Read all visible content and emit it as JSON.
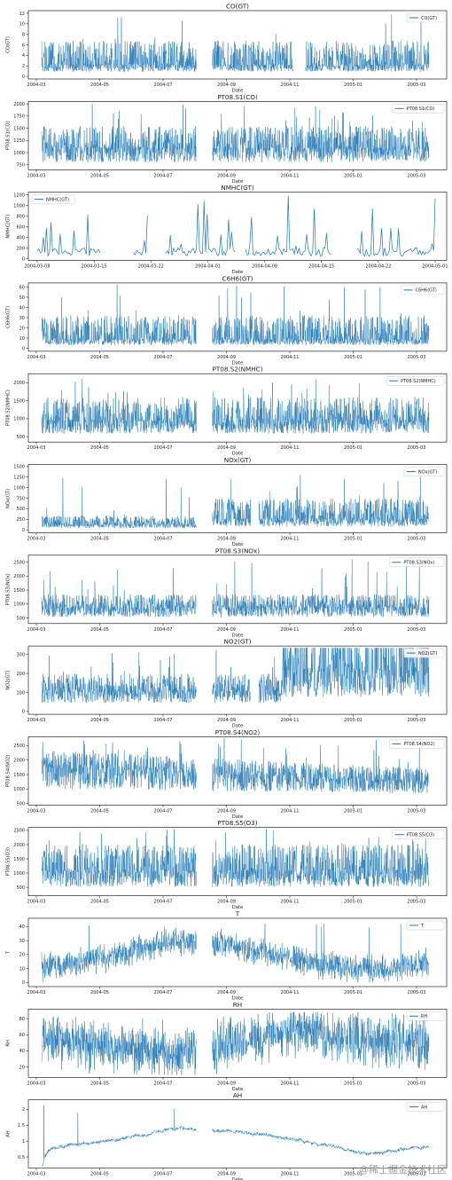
{
  "colors": {
    "line": "#1f77b4",
    "axis": "#000000",
    "legend_border": "#cccccc"
  },
  "watermark": "@稀土掘金技术社区",
  "chart_data": [
    {
      "type": "line",
      "title": "CO(GT)",
      "xlabel": "Date",
      "ylabel": "CO(GT)",
      "legend": "top-right",
      "series": [
        {
          "name": "CO(GT)"
        }
      ],
      "x_ticks": [
        "2004-03",
        "2004-05",
        "2004-07",
        "2004-09",
        "2004-11",
        "2005-01",
        "2005-03"
      ],
      "y_ticks": [
        0,
        2,
        4,
        6,
        8,
        10,
        12
      ],
      "ylim": [
        -0.5,
        12.5
      ],
      "signal": {
        "lo": 0.4,
        "mid": 2.0,
        "hi": 6.0,
        "peak": 11.9,
        "noise": 1.2,
        "gaps": [
          [
            0.4,
            0.44
          ],
          [
            0.65,
            0.68
          ]
        ]
      }
    },
    {
      "type": "line",
      "title": "PT08.S1(CO)",
      "xlabel": "Date",
      "ylabel": "PT08.S1(CO)",
      "legend": "top-right",
      "series": [
        {
          "name": "PT08.S1(CO)"
        }
      ],
      "x_ticks": [
        "2004-03",
        "2004-05",
        "2004-07",
        "2004-09",
        "2004-11",
        "2005-01",
        "2005-03"
      ],
      "y_ticks": [
        750,
        1000,
        1250,
        1500,
        1750,
        2000
      ],
      "ylim": [
        650,
        2050
      ],
      "signal": {
        "lo": 700,
        "mid": 1050,
        "hi": 1600,
        "peak": 2000,
        "noise": 0.9,
        "gaps": [
          [
            0.4,
            0.44
          ]
        ]
      }
    },
    {
      "type": "line",
      "title": "NMHC(GT)",
      "xlabel": "Date",
      "ylabel": "NMHC(GT)",
      "legend": "top-left",
      "series": [
        {
          "name": "NMHC(GT)"
        }
      ],
      "x_ticks": [
        "2004-03-08",
        "2004-03-15",
        "2004-03-22",
        "2004-04-01",
        "2004-04-08",
        "2004-04-15",
        "2004-04-22",
        "2004-05-01"
      ],
      "y_ticks": [
        0,
        200,
        400,
        600,
        800,
        1000,
        1200
      ],
      "ylim": [
        -30,
        1250
      ],
      "signal": {
        "lo": 50,
        "mid": 150,
        "hi": 600,
        "peak": 1190,
        "noise": 0.4,
        "sparse": true,
        "gaps": [
          [
            0.16,
            0.24
          ],
          [
            0.28,
            0.32
          ],
          [
            0.5,
            0.52
          ],
          [
            0.74,
            0.8
          ]
        ]
      }
    },
    {
      "type": "line",
      "title": "C6H6(GT)",
      "xlabel": "Date",
      "ylabel": "C6H6(GT)",
      "legend": "top-right",
      "series": [
        {
          "name": "C6H6(GT)"
        }
      ],
      "x_ticks": [
        "2004-03",
        "2004-05",
        "2004-07",
        "2004-09",
        "2004-11",
        "2005-01",
        "2005-03"
      ],
      "y_ticks": [
        0,
        10,
        20,
        30,
        40,
        50,
        60
      ],
      "ylim": [
        -3,
        64
      ],
      "signal": {
        "lo": 1,
        "mid": 8,
        "hi": 30,
        "peak": 63,
        "noise": 1.1,
        "gaps": [
          [
            0.4,
            0.44
          ]
        ]
      }
    },
    {
      "type": "line",
      "title": "PT08.S2(NMHC)",
      "xlabel": "Date",
      "ylabel": "PT08.S2(NMHC)",
      "legend": "top-right",
      "series": [
        {
          "name": "PT08.S2(NMHC)"
        }
      ],
      "x_ticks": [
        "2004-03",
        "2004-05",
        "2004-07",
        "2004-09",
        "2004-11",
        "2005-01",
        "2005-03"
      ],
      "y_ticks": [
        500,
        1000,
        1500,
        2000
      ],
      "ylim": [
        350,
        2250
      ],
      "signal": {
        "lo": 450,
        "mid": 900,
        "hi": 1600,
        "peak": 2200,
        "noise": 1.0,
        "gaps": [
          [
            0.4,
            0.44
          ]
        ]
      }
    },
    {
      "type": "line",
      "title": "NOx(GT)",
      "xlabel": "Date",
      "ylabel": "NOx(GT)",
      "legend": "top-right",
      "series": [
        {
          "name": "NOx(GT)"
        }
      ],
      "x_ticks": [
        "2004-03",
        "2004-05",
        "2004-07",
        "2004-09",
        "2004-11",
        "2005-01",
        "2005-03"
      ],
      "y_ticks": [
        0,
        250,
        500,
        750,
        1000,
        1250,
        1500
      ],
      "ylim": [
        -70,
        1550
      ],
      "signal": {
        "lo": 10,
        "mid": 120,
        "hi": 300,
        "peak": 1480,
        "noise": 1.2,
        "rise_at": 0.42,
        "gaps": [
          [
            0.4,
            0.44
          ],
          [
            0.54,
            0.56
          ]
        ]
      }
    },
    {
      "type": "line",
      "title": "PT08.S3(NOx)",
      "xlabel": "Date",
      "ylabel": "PT08.S3(NOx)",
      "legend": "top-right",
      "series": [
        {
          "name": "PT08.S3(NOx)"
        }
      ],
      "x_ticks": [
        "2004-03",
        "2004-05",
        "2004-07",
        "2004-09",
        "2004-11",
        "2005-01",
        "2005-03"
      ],
      "y_ticks": [
        500,
        1000,
        1500,
        2000,
        2500
      ],
      "ylim": [
        300,
        2750
      ],
      "signal": {
        "lo": 400,
        "mid": 850,
        "hi": 1400,
        "peak": 2650,
        "noise": 0.9,
        "gaps": [
          [
            0.4,
            0.44
          ]
        ]
      }
    },
    {
      "type": "line",
      "title": "NO2(GT)",
      "xlabel": "Date",
      "ylabel": "NO2(GT)",
      "legend": "top-right",
      "series": [
        {
          "name": "NO2(GT)"
        }
      ],
      "x_ticks": [
        "2004-03",
        "2004-05",
        "2004-07",
        "2004-09",
        "2004-11",
        "2005-01",
        "2005-03"
      ],
      "y_ticks": [
        0,
        100,
        200,
        300
      ],
      "ylim": [
        -15,
        345
      ],
      "signal": {
        "lo": 20,
        "mid": 100,
        "hi": 200,
        "peak": 335,
        "noise": 1.0,
        "rise_at": 0.62,
        "gaps": [
          [
            0.4,
            0.44
          ],
          [
            0.54,
            0.56
          ]
        ]
      }
    },
    {
      "type": "line",
      "title": "PT08.S4(NO2)",
      "xlabel": "Date",
      "ylabel": "PT08.S4(NO2)",
      "legend": "top-right",
      "series": [
        {
          "name": "PT08.S4(NO2)"
        }
      ],
      "x_ticks": [
        "2004-03",
        "2004-05",
        "2004-07",
        "2004-09",
        "2004-11",
        "2005-01",
        "2005-03"
      ],
      "y_ticks": [
        500,
        1000,
        1500,
        2000,
        2500
      ],
      "ylim": [
        450,
        2800
      ],
      "signal": {
        "lo": 700,
        "mid": 1500,
        "hi": 2200,
        "peak": 2750,
        "noise": 0.9,
        "decline": true,
        "gaps": [
          [
            0.4,
            0.44
          ]
        ]
      }
    },
    {
      "type": "line",
      "title": "PT08.S5(O3)",
      "xlabel": "Date",
      "ylabel": "PT08.S5(O3)",
      "legend": "top-right",
      "series": [
        {
          "name": "PT08.S5(O3)"
        }
      ],
      "x_ticks": [
        "2004-03",
        "2004-05",
        "2004-07",
        "2004-09",
        "2004-11",
        "2005-01",
        "2005-03"
      ],
      "y_ticks": [
        500,
        1000,
        1500,
        2000,
        2500
      ],
      "ylim": [
        200,
        2600
      ],
      "signal": {
        "lo": 300,
        "mid": 1000,
        "hi": 2000,
        "peak": 2550,
        "noise": 1.0,
        "gaps": [
          [
            0.4,
            0.44
          ]
        ]
      }
    },
    {
      "type": "line",
      "title": "T",
      "xlabel": "Date",
      "ylabel": "T",
      "legend": "top-right",
      "series": [
        {
          "name": "T"
        }
      ],
      "x_ticks": [
        "2004-03",
        "2004-05",
        "2004-07",
        "2004-09",
        "2004-11",
        "2005-01",
        "2005-03"
      ],
      "y_ticks": [
        0,
        10,
        20,
        30,
        40
      ],
      "ylim": [
        -3,
        46
      ],
      "signal": {
        "seasonal": true,
        "base": [
          10,
          18,
          30,
          26,
          15,
          8,
          14
        ],
        "amp": 8,
        "peak": 44,
        "floor": 0,
        "gaps": [
          [
            0.4,
            0.44
          ]
        ]
      }
    },
    {
      "type": "line",
      "title": "RH",
      "xlabel": "Date",
      "ylabel": "RH",
      "legend": "top-right",
      "series": [
        {
          "name": "RH"
        }
      ],
      "x_ticks": [
        "2004-03",
        "2004-05",
        "2004-07",
        "2004-09",
        "2004-11",
        "2005-01",
        "2005-03"
      ],
      "y_ticks": [
        20,
        40,
        60,
        80
      ],
      "ylim": [
        7,
        92
      ],
      "signal": {
        "seasonal": true,
        "base": [
          55,
          45,
          35,
          50,
          65,
          55,
          50
        ],
        "amp": 25,
        "peak": 88,
        "floor": 10,
        "gaps": [
          [
            0.4,
            0.44
          ]
        ]
      }
    },
    {
      "type": "line",
      "title": "AH",
      "xlabel": "Date",
      "ylabel": "AH",
      "legend": "top-right",
      "series": [
        {
          "name": "AH"
        }
      ],
      "x_ticks": [
        "2004-03",
        "2004-05",
        "2004-07",
        "2004-09",
        "2004-11",
        "2005-01",
        "2005-03"
      ],
      "y_ticks": [
        0.5,
        1.0,
        1.5,
        2.0
      ],
      "ylim": [
        0.15,
        2.3
      ],
      "signal": {
        "seasonal": true,
        "smooth": true,
        "base": [
          0.8,
          1.0,
          1.4,
          1.3,
          1.0,
          0.6,
          0.85
        ],
        "amp": 0.35,
        "peak": 2.15,
        "floor": 0.2,
        "gaps": [
          [
            0.4,
            0.44
          ]
        ]
      }
    }
  ]
}
